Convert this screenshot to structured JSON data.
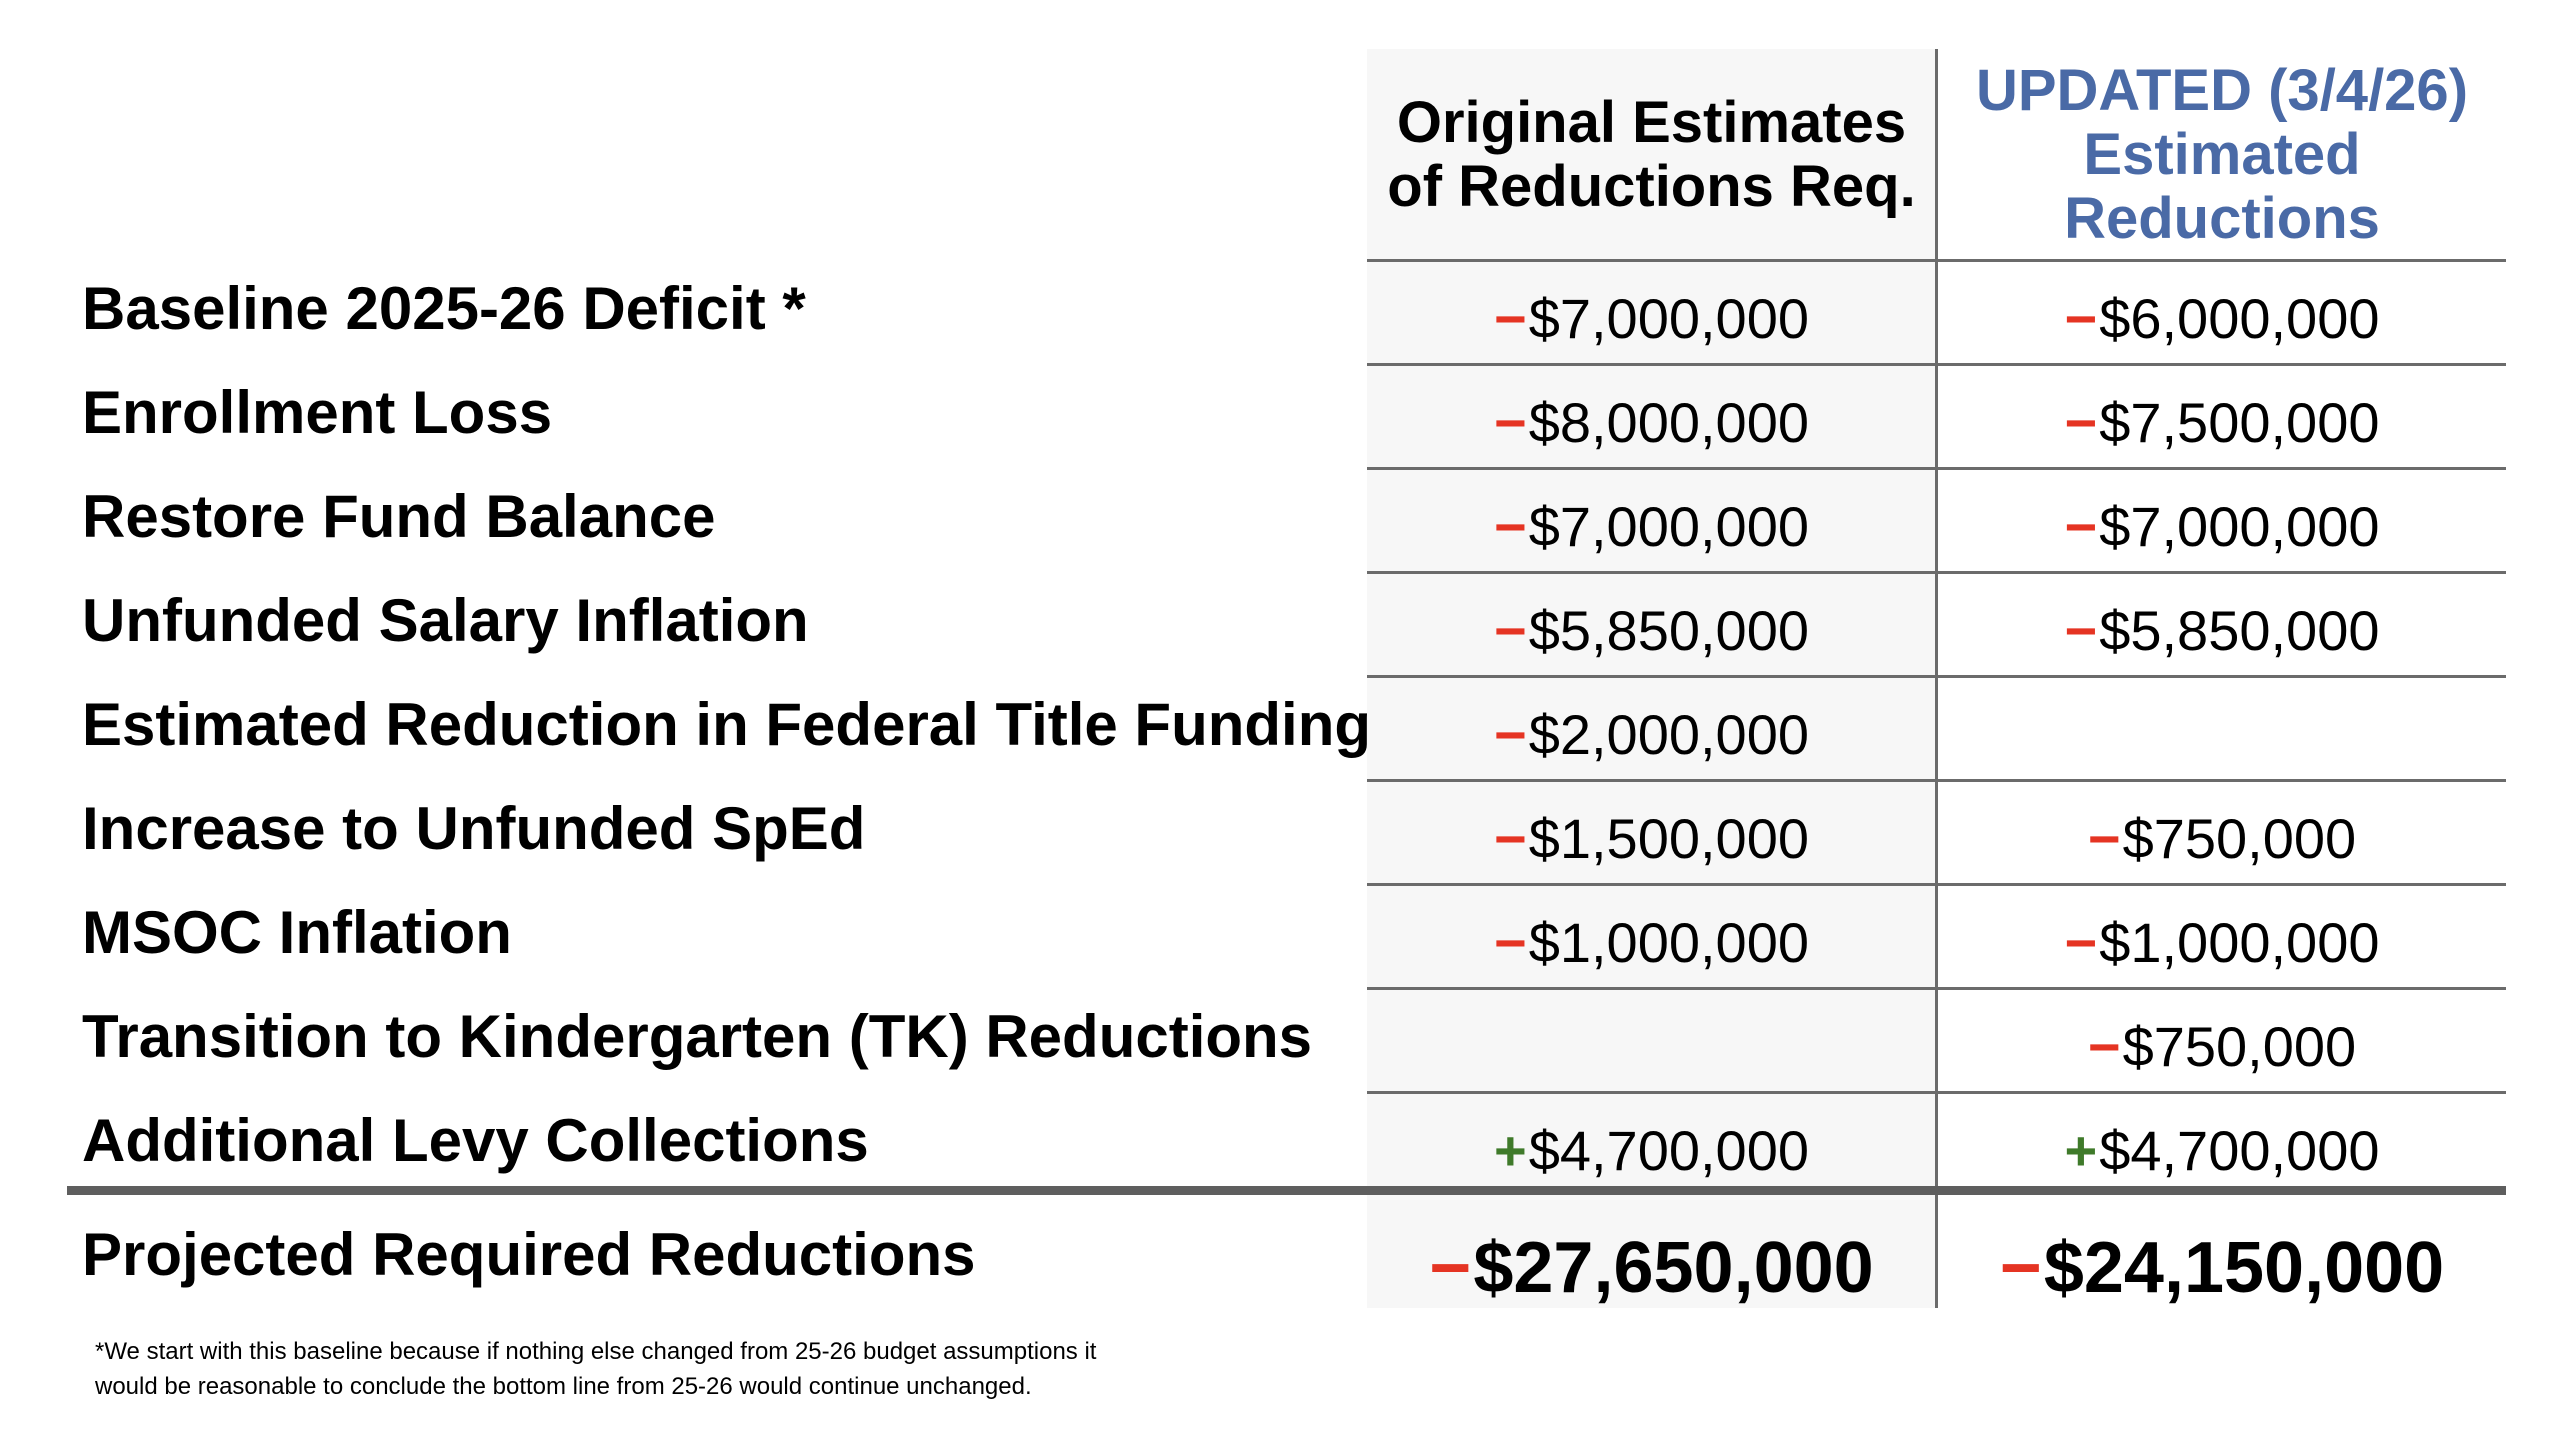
{
  "headers": {
    "original": [
      "Original Estimates",
      "of Reductions Req."
    ],
    "updated": [
      "UPDATED (3/4/26)",
      "Estimated",
      "Reductions"
    ]
  },
  "colors": {
    "negative": "#e53423",
    "positive": "#3f7a2a",
    "updated_header": "#4a6aa6"
  },
  "rows": [
    {
      "label": "Baseline 2025-26 Deficit *",
      "original": {
        "sign": "−",
        "amount": "$7,000,000"
      },
      "updated": {
        "sign": "−",
        "amount": "$6,000,000"
      }
    },
    {
      "label": "Enrollment Loss",
      "original": {
        "sign": "−",
        "amount": "$8,000,000"
      },
      "updated": {
        "sign": "−",
        "amount": "$7,500,000"
      }
    },
    {
      "label": "Restore Fund Balance",
      "original": {
        "sign": "−",
        "amount": "$7,000,000"
      },
      "updated": {
        "sign": "−",
        "amount": "$7,000,000"
      }
    },
    {
      "label": "Unfunded Salary Inflation",
      "original": {
        "sign": "−",
        "amount": "$5,850,000"
      },
      "updated": {
        "sign": "−",
        "amount": "$5,850,000"
      }
    },
    {
      "label": "Estimated Reduction in Federal Title Funding",
      "original": {
        "sign": "−",
        "amount": "$2,000,000"
      },
      "updated": {
        "sign": "",
        "amount": ""
      }
    },
    {
      "label": "Increase to Unfunded SpEd",
      "original": {
        "sign": "−",
        "amount": "$1,500,000"
      },
      "updated": {
        "sign": "−",
        "amount": "$750,000"
      }
    },
    {
      "label": "MSOC Inflation",
      "original": {
        "sign": "−",
        "amount": "$1,000,000"
      },
      "updated": {
        "sign": "−",
        "amount": "$1,000,000"
      }
    },
    {
      "label": "Transition to Kindergarten (TK) Reductions",
      "original": {
        "sign": "",
        "amount": ""
      },
      "updated": {
        "sign": "−",
        "amount": "$750,000"
      }
    },
    {
      "label": "Additional Levy Collections",
      "original": {
        "sign": "+",
        "amount": "$4,700,000"
      },
      "updated": {
        "sign": "+",
        "amount": "$4,700,000"
      }
    }
  ],
  "total": {
    "label": "Projected Required Reductions",
    "original": {
      "sign": "−",
      "amount": "$27,650,000"
    },
    "updated": {
      "sign": "−",
      "amount": "$24,150,000"
    }
  },
  "footnote": [
    "*We start with this baseline because if nothing else changed from 25-26 budget assumptions it",
    "would be reasonable to conclude the bottom line from 25-26 would continue unchanged."
  ]
}
